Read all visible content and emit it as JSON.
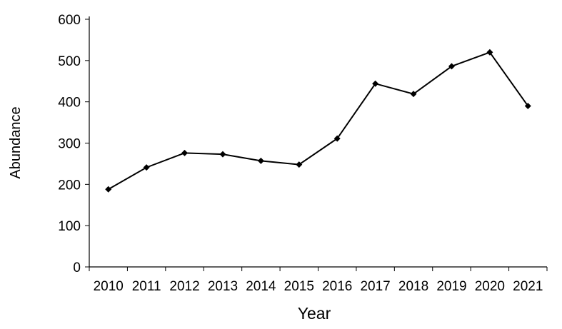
{
  "chart_data": {
    "type": "line",
    "title": "",
    "xlabel": "Year",
    "ylabel": "Abundance",
    "categories": [
      "2010",
      "2011",
      "2012",
      "2013",
      "2014",
      "2015",
      "2016",
      "2017",
      "2018",
      "2019",
      "2020",
      "2021"
    ],
    "values": [
      188,
      241,
      276,
      273,
      257,
      248,
      311,
      444,
      419,
      486,
      520,
      390
    ],
    "ylim": [
      0,
      600
    ],
    "yticks": [
      "0",
      "100",
      "200",
      "300",
      "400",
      "500",
      "600"
    ],
    "grid": false,
    "marker": "diamond",
    "line_color": "#000000"
  }
}
